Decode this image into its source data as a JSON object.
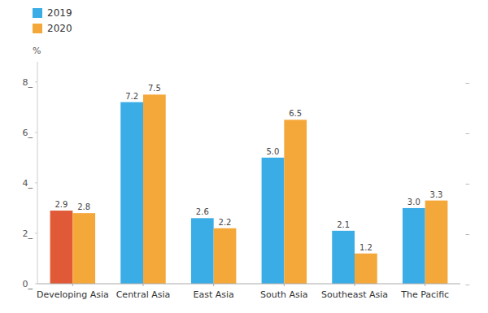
{
  "chart_data": {
    "type": "bar",
    "ylabel": "%",
    "categories": [
      "Developing Asia",
      "Central Asia",
      "East Asia",
      "South Asia",
      "Southeast Asia",
      "The Pacific"
    ],
    "series": [
      {
        "name": "2019",
        "color": "#3AACE6",
        "colors": [
          "#E05A38",
          "#3AACE6",
          "#3AACE6",
          "#3AACE6",
          "#3AACE6",
          "#3AACE6"
        ],
        "values": [
          2.9,
          7.2,
          2.6,
          5.0,
          2.1,
          3.0
        ],
        "value_labels": [
          "2.9",
          "7.2",
          "2.6",
          "5.0",
          "2.1",
          "3.0"
        ]
      },
      {
        "name": "2020",
        "color": "#F5A83A",
        "values": [
          2.8,
          7.5,
          2.2,
          6.5,
          1.2,
          3.3
        ],
        "value_labels": [
          "2.8",
          "7.5",
          "2.2",
          "6.5",
          "1.2",
          "3.3"
        ]
      }
    ],
    "ylim": [
      0,
      8.8
    ],
    "yticks": [
      {
        "value": 0,
        "label": "0_"
      },
      {
        "value": 2,
        "label": "2_"
      },
      {
        "value": 4,
        "label": "4_"
      },
      {
        "value": 6,
        "label": "6_"
      },
      {
        "value": 8,
        "label": "8_"
      }
    ],
    "y2lim": [
      0,
      8.8
    ],
    "y2ticks": [
      {
        "value": 0,
        "label": "–"
      },
      {
        "value": 2,
        "label": "–"
      },
      {
        "value": 4,
        "label": "–"
      },
      {
        "value": 6,
        "label": "–"
      },
      {
        "value": 8,
        "label": "–"
      }
    ],
    "grid": false,
    "legend": "upper left",
    "data_labels": true
  }
}
